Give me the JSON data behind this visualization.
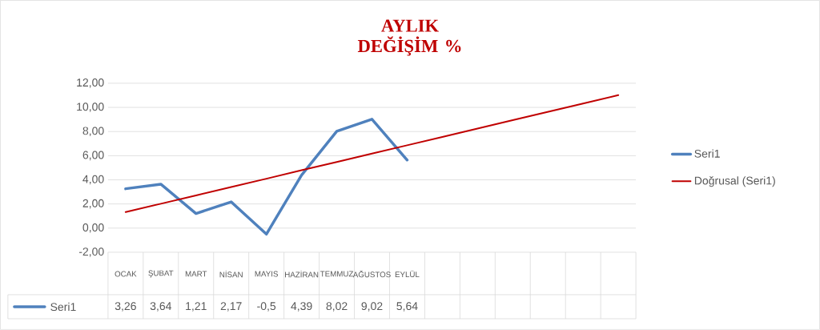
{
  "chart_data": {
    "type": "line",
    "title": "AYLIK DEĞİŞİM %",
    "categories": [
      "OCAK",
      "ŞUBAT",
      "MART",
      "NİSAN",
      "MAYIS",
      "HAZİRAN",
      "TEMMUZ",
      "AĞUSTOS",
      "EYLÜL",
      null,
      null,
      null,
      null,
      null,
      null
    ],
    "series": [
      {
        "name": "Seri1",
        "color": "#4f81bd",
        "values": [
          3.26,
          3.64,
          1.21,
          2.17,
          -0.5,
          4.39,
          8.02,
          9.02,
          5.64,
          null,
          null,
          null,
          null,
          null,
          null
        ],
        "value_labels": [
          "3,26",
          "3,64",
          "1,21",
          "2,17",
          "-0,5",
          "4,39",
          "8,02",
          "9,02",
          "5,64",
          null,
          null,
          null,
          null,
          null,
          null
        ]
      },
      {
        "name": "Doğrusal (Seri1)",
        "color": "#c00000",
        "values": [
          1.33,
          2.02,
          2.71,
          3.4,
          4.09,
          4.79,
          5.48,
          6.17,
          6.86,
          7.55,
          8.24,
          8.94,
          9.63,
          10.32,
          11.01
        ]
      }
    ],
    "ylim": [
      -2,
      12
    ],
    "yticks": [
      {
        "value": -2,
        "label": "-2,00"
      },
      {
        "value": 0,
        "label": "0,00"
      },
      {
        "value": 2,
        "label": "2,00"
      },
      {
        "value": 4,
        "label": "4,00"
      },
      {
        "value": 6,
        "label": "6,00"
      },
      {
        "value": 8,
        "label": "8,00"
      },
      {
        "value": 10,
        "label": "10,00"
      },
      {
        "value": 12,
        "label": "12,00"
      }
    ],
    "grid": "y",
    "legend": "right",
    "marker": "none",
    "line_style": "solid"
  }
}
